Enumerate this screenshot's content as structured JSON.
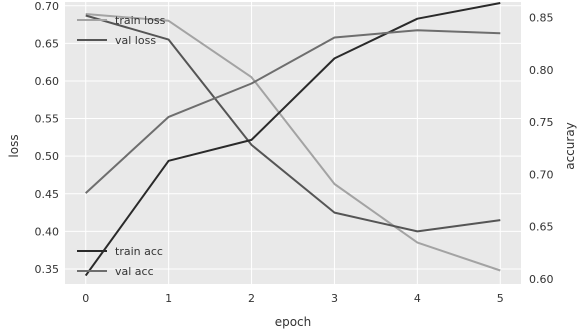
{
  "chart_data": {
    "type": "line",
    "xlabel": "epoch",
    "ylabel_left": "loss",
    "ylabel_right": "accuray",
    "x": [
      0,
      1,
      2,
      3,
      4,
      5
    ],
    "x_ticks": [
      "0",
      "1",
      "2",
      "3",
      "4",
      "5"
    ],
    "xlim": [
      -0.25,
      5.25
    ],
    "ylim_left": [
      0.33,
      0.705
    ],
    "ylim_right": [
      0.595,
      0.865
    ],
    "yticks_left": [
      "0.35",
      "0.40",
      "0.45",
      "0.50",
      "0.55",
      "0.60",
      "0.65",
      "0.70"
    ],
    "yticks_right": [
      "0.60",
      "0.65",
      "0.70",
      "0.75",
      "0.80",
      "0.85"
    ],
    "grid": true,
    "background": "#e9e9e9",
    "series": [
      {
        "name": "train loss",
        "axis": "left",
        "color": "#a3a3a3",
        "values": [
          0.689,
          0.68,
          0.605,
          0.463,
          0.385,
          0.348
        ]
      },
      {
        "name": "val loss",
        "axis": "left",
        "color": "#555555",
        "values": [
          0.687,
          0.655,
          0.515,
          0.425,
          0.4,
          0.415
        ]
      },
      {
        "name": "train acc",
        "axis": "right",
        "color": "#2a2a2a",
        "values": [
          0.603,
          0.713,
          0.733,
          0.811,
          0.849,
          0.864
        ]
      },
      {
        "name": "val acc",
        "axis": "right",
        "color": "#6e6e6e",
        "values": [
          0.682,
          0.755,
          0.787,
          0.831,
          0.838,
          0.835
        ]
      }
    ],
    "legends": [
      {
        "position": "top-left",
        "entries": [
          "train loss",
          "val loss"
        ]
      },
      {
        "position": "bottom-left",
        "entries": [
          "train acc",
          "val acc"
        ]
      }
    ]
  }
}
